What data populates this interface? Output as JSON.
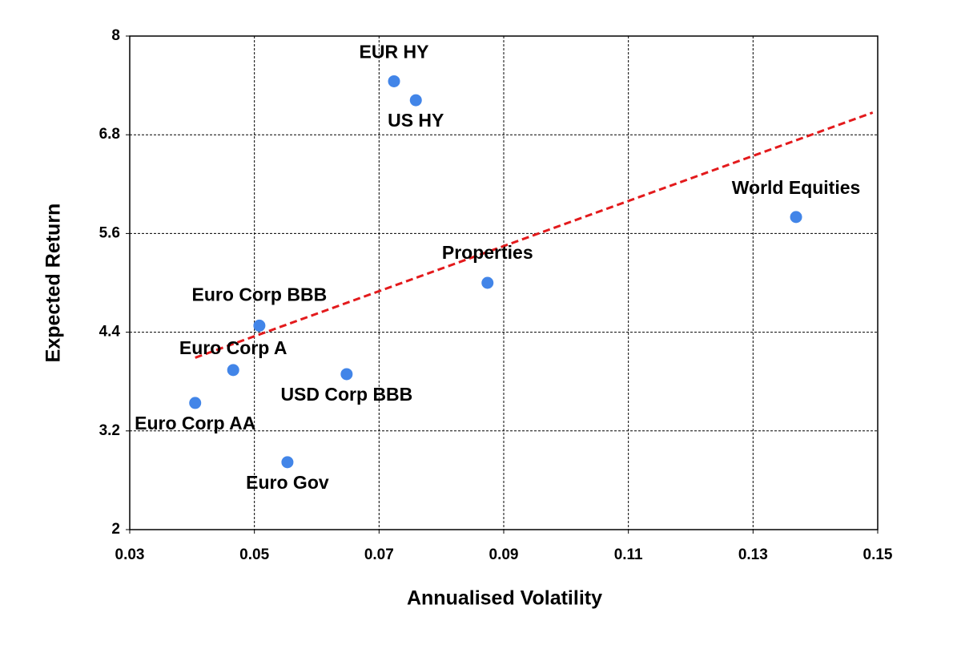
{
  "chart_data": {
    "type": "scatter",
    "xlabel": "Annualised Volatility",
    "ylabel": "Expected Return",
    "labels": [
      "EUR HY",
      "US HY",
      "World Equities",
      "Properties",
      "Euro Corp BBB",
      "Euro Corp A",
      "USD Corp BBB",
      "Euro Corp AA",
      "Euro Gov"
    ],
    "x": [
      0.0724,
      0.0759,
      0.1369,
      0.0874,
      0.0508,
      0.0466,
      0.0648,
      0.0405,
      0.0553
    ],
    "values": [
      7.45,
      7.22,
      5.8,
      5.0,
      4.48,
      3.94,
      3.89,
      3.54,
      2.82
    ],
    "color": "#4285e8",
    "trend": {
      "x": [
        0.0405,
        0.1492
      ],
      "values": [
        4.09,
        7.07
      ],
      "color": "#e31a1c"
    },
    "xlim": [
      0.03,
      0.15
    ],
    "xticks": [
      0.03,
      0.05,
      0.07,
      0.09,
      0.11,
      0.13,
      0.15
    ],
    "ylim": [
      2,
      8
    ],
    "yticks": [
      2,
      3.2,
      4.4,
      5.6,
      6.8,
      8
    ],
    "grid": true
  }
}
